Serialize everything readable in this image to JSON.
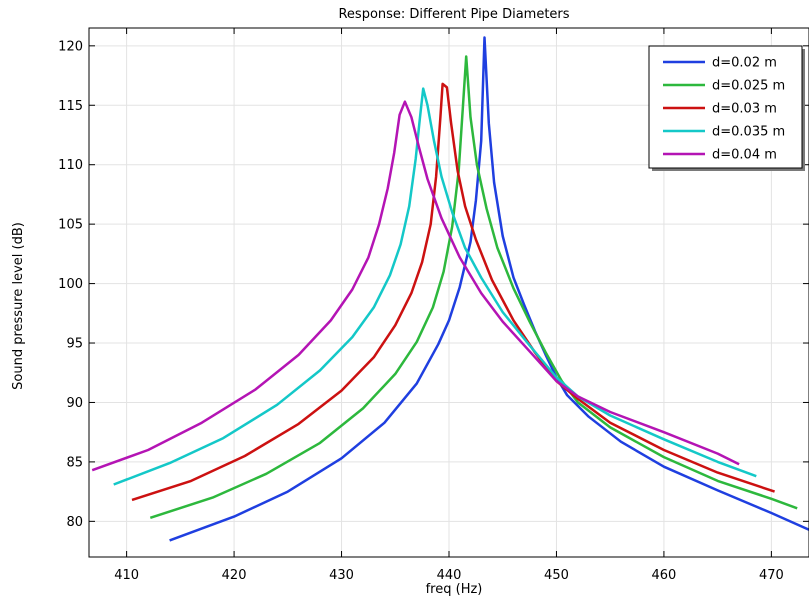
{
  "chart_data": {
    "type": "line",
    "title": "Response: Different Pipe Diameters",
    "xlabel": "freq (Hz)",
    "ylabel": "Sound pressure level (dB)",
    "xlim": [
      406.5,
      473.5
    ],
    "ylim": [
      77,
      121.5
    ],
    "xticks": [
      410,
      420,
      430,
      440,
      450,
      460,
      470
    ],
    "yticks": [
      80,
      85,
      90,
      95,
      100,
      105,
      110,
      115,
      120
    ],
    "grid": true,
    "legend_position": "top-right",
    "series": [
      {
        "name": "d=0.02 m",
        "color": "#1f3fe0",
        "points": [
          [
            414,
            78.4
          ],
          [
            420,
            80.4
          ],
          [
            425,
            82.5
          ],
          [
            430,
            85.3
          ],
          [
            434,
            88.3
          ],
          [
            437,
            91.6
          ],
          [
            439,
            94.9
          ],
          [
            440,
            96.9
          ],
          [
            441,
            99.7
          ],
          [
            442,
            103.5
          ],
          [
            442.5,
            107.0
          ],
          [
            443,
            112.0
          ],
          [
            443.3,
            120.7
          ],
          [
            443.7,
            113.5
          ],
          [
            444.2,
            108.5
          ],
          [
            445,
            104.0
          ],
          [
            446,
            100.5
          ],
          [
            447,
            98.2
          ],
          [
            448,
            96.0
          ],
          [
            449,
            94.0
          ],
          [
            450,
            92.1
          ],
          [
            451,
            90.6
          ],
          [
            453,
            88.8
          ],
          [
            456,
            86.7
          ],
          [
            460,
            84.6
          ],
          [
            465,
            82.6
          ],
          [
            470,
            80.7
          ],
          [
            473.5,
            79.3
          ]
        ]
      },
      {
        "name": "d=0.025 m",
        "color": "#2db83d",
        "points": [
          [
            412.2,
            80.3
          ],
          [
            418,
            82.0
          ],
          [
            423,
            84.0
          ],
          [
            428,
            86.6
          ],
          [
            432,
            89.5
          ],
          [
            435,
            92.4
          ],
          [
            437,
            95.1
          ],
          [
            438.5,
            98.0
          ],
          [
            439.5,
            101.0
          ],
          [
            440.3,
            104.8
          ],
          [
            440.9,
            109.5
          ],
          [
            441.3,
            115.0
          ],
          [
            441.6,
            119.1
          ],
          [
            442.0,
            114.0
          ],
          [
            442.6,
            110.0
          ],
          [
            443.5,
            106.3
          ],
          [
            444.5,
            103.0
          ],
          [
            446,
            99.6
          ],
          [
            447.5,
            96.8
          ],
          [
            449,
            94.2
          ],
          [
            450.5,
            91.8
          ],
          [
            452,
            90.0
          ],
          [
            455,
            87.9
          ],
          [
            460,
            85.4
          ],
          [
            465,
            83.4
          ],
          [
            470,
            81.9
          ],
          [
            472.4,
            81.1
          ]
        ]
      },
      {
        "name": "d=0.03 m",
        "color": "#cc1111",
        "points": [
          [
            410.5,
            81.8
          ],
          [
            416,
            83.4
          ],
          [
            421,
            85.5
          ],
          [
            426,
            88.2
          ],
          [
            430,
            91.0
          ],
          [
            433,
            93.8
          ],
          [
            435,
            96.5
          ],
          [
            436.5,
            99.2
          ],
          [
            437.5,
            101.8
          ],
          [
            438.3,
            105.0
          ],
          [
            438.8,
            109.0
          ],
          [
            439.2,
            114.0
          ],
          [
            439.4,
            116.8
          ],
          [
            439.8,
            116.5
          ],
          [
            440.2,
            113.5
          ],
          [
            440.8,
            109.5
          ],
          [
            441.5,
            106.5
          ],
          [
            442.5,
            103.7
          ],
          [
            444,
            100.3
          ],
          [
            446,
            96.9
          ],
          [
            448,
            94.2
          ],
          [
            450,
            91.8
          ],
          [
            452,
            90.3
          ],
          [
            455,
            88.3
          ],
          [
            460,
            86.0
          ],
          [
            465,
            84.1
          ],
          [
            470.3,
            82.5
          ]
        ]
      },
      {
        "name": "d=0.035 m",
        "color": "#14c8c8",
        "points": [
          [
            408.8,
            83.1
          ],
          [
            414,
            84.9
          ],
          [
            419,
            87.0
          ],
          [
            424,
            89.8
          ],
          [
            428,
            92.7
          ],
          [
            431,
            95.5
          ],
          [
            433,
            98.0
          ],
          [
            434.5,
            100.7
          ],
          [
            435.5,
            103.3
          ],
          [
            436.3,
            106.5
          ],
          [
            436.9,
            110.5
          ],
          [
            437.3,
            114.0
          ],
          [
            437.6,
            116.4
          ],
          [
            438.0,
            115.0
          ],
          [
            438.6,
            112.0
          ],
          [
            439.3,
            109.0
          ],
          [
            440.3,
            106.0
          ],
          [
            441.5,
            103.0
          ],
          [
            443,
            100.5
          ],
          [
            445,
            97.6
          ],
          [
            447.5,
            94.8
          ],
          [
            450,
            92.1
          ],
          [
            452,
            90.5
          ],
          [
            455,
            88.9
          ],
          [
            460,
            86.9
          ],
          [
            465,
            85.0
          ],
          [
            468.6,
            83.8
          ]
        ]
      },
      {
        "name": "d=0.04 m",
        "color": "#b414b4",
        "points": [
          [
            406.8,
            84.3
          ],
          [
            412,
            86.0
          ],
          [
            417,
            88.3
          ],
          [
            422,
            91.1
          ],
          [
            426,
            94.0
          ],
          [
            429,
            96.9
          ],
          [
            431,
            99.5
          ],
          [
            432.5,
            102.2
          ],
          [
            433.5,
            105.0
          ],
          [
            434.3,
            108.0
          ],
          [
            434.9,
            111.0
          ],
          [
            435.4,
            114.2
          ],
          [
            435.9,
            115.3
          ],
          [
            436.5,
            114.0
          ],
          [
            437.2,
            111.5
          ],
          [
            438,
            108.8
          ],
          [
            439.3,
            105.5
          ],
          [
            441,
            102.2
          ],
          [
            443,
            99.2
          ],
          [
            445,
            96.8
          ],
          [
            447.5,
            94.3
          ],
          [
            450,
            91.8
          ],
          [
            452,
            90.5
          ],
          [
            455,
            89.2
          ],
          [
            460,
            87.5
          ],
          [
            465,
            85.7
          ],
          [
            467,
            84.8
          ]
        ]
      }
    ]
  }
}
